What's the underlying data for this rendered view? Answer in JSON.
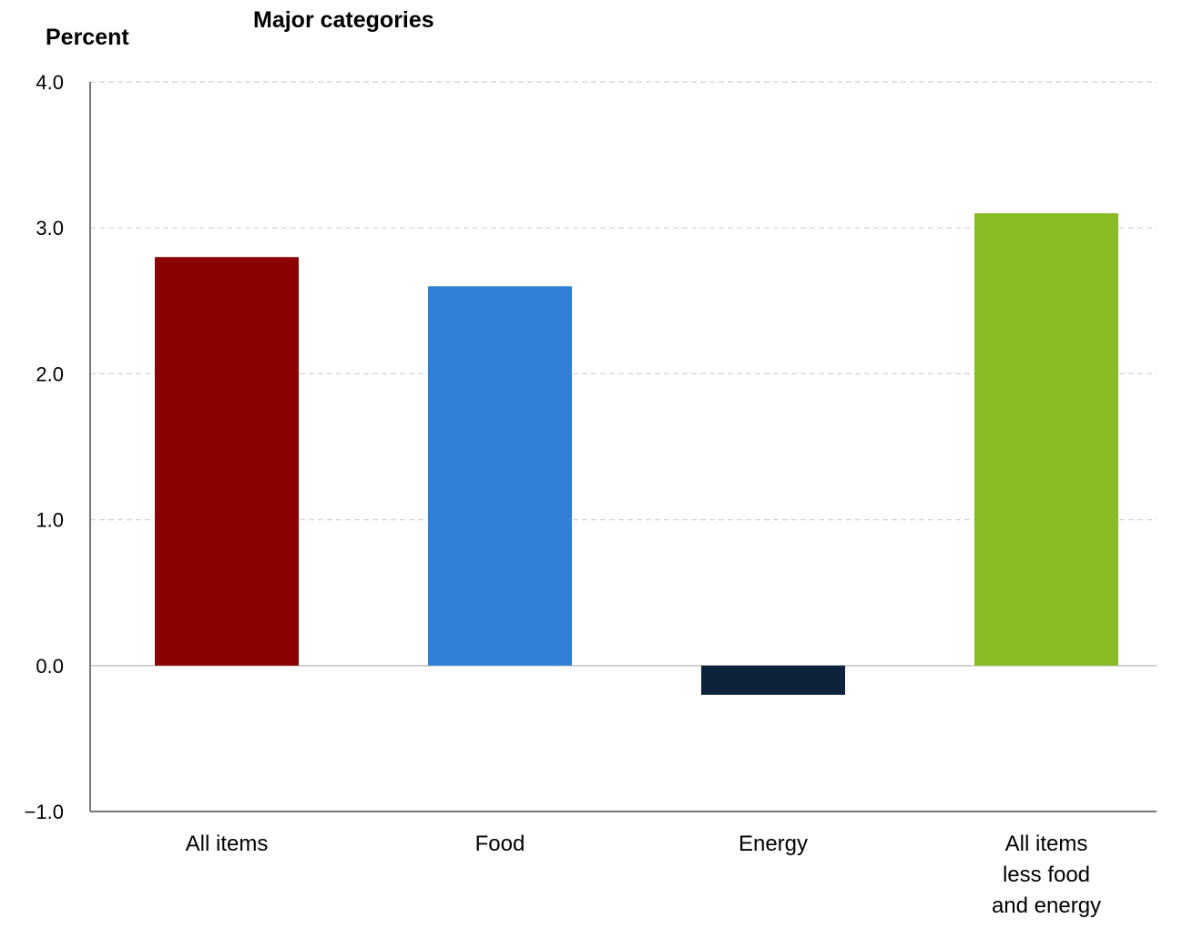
{
  "chart_data": {
    "type": "bar",
    "title": "Major categories",
    "ylabel": "Percent",
    "xlabel": "",
    "categories": [
      [
        "All items"
      ],
      [
        "Food"
      ],
      [
        "Energy"
      ],
      [
        "All items",
        "less food",
        "and energy"
      ]
    ],
    "values": [
      2.8,
      2.6,
      -0.2,
      3.1
    ],
    "colors": [
      "#8B0000",
      "#2F80D6",
      "#0D233A",
      "#88BB24"
    ],
    "ylim": [
      -1.0,
      4.0
    ],
    "yticks": [
      4.0,
      3.0,
      2.0,
      1.0,
      0.0,
      -1.0
    ],
    "ytick_labels": [
      "4.0",
      "3.0",
      "2.0",
      "1.0",
      "0.0",
      "−1.0"
    ],
    "grid": true
  }
}
